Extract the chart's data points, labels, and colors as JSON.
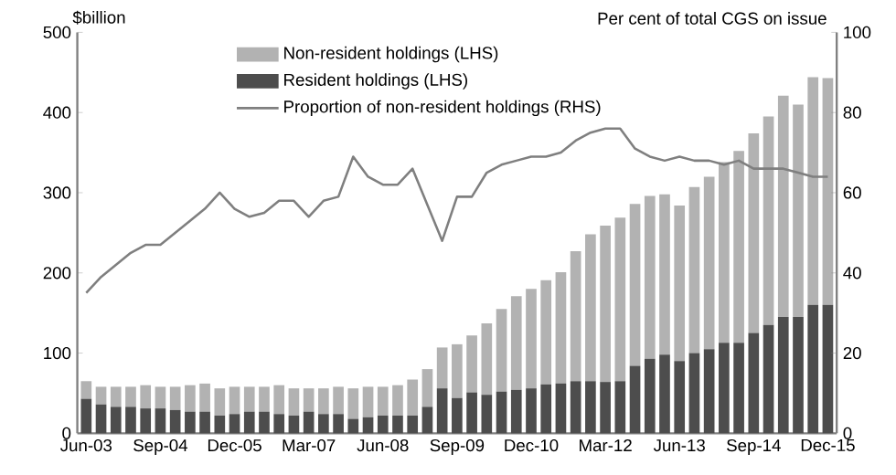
{
  "chart_data": {
    "type": "bar",
    "stacked": true,
    "ylabel": "$billion",
    "y2label": "Per cent of total CGS on issue",
    "categories": [
      "Jun-03",
      null,
      null,
      null,
      null,
      "Sep-04",
      null,
      null,
      null,
      null,
      "Dec-05",
      null,
      null,
      null,
      null,
      "Mar-07",
      null,
      null,
      null,
      null,
      "Jun-08",
      null,
      null,
      null,
      null,
      "Sep-09",
      null,
      null,
      null,
      null,
      "Dec-10",
      null,
      null,
      null,
      null,
      "Mar-12",
      null,
      null,
      null,
      null,
      "Jun-13",
      null,
      null,
      null,
      null,
      "Sep-14",
      null,
      null,
      null,
      null,
      "Dec-15"
    ],
    "ylim": [
      0,
      500
    ],
    "yticks": [
      0,
      100,
      200,
      300,
      400,
      500
    ],
    "y2lim": [
      0,
      100
    ],
    "y2ticks": [
      0,
      20,
      40,
      60,
      80,
      100
    ],
    "legend": "top left",
    "series": [
      {
        "name": "Resident holdings (LHS)",
        "color": "#4d4d4d",
        "values": [
          43,
          36,
          33,
          33,
          31,
          31,
          29,
          27,
          27,
          22,
          24,
          27,
          27,
          24,
          22,
          27,
          24,
          24,
          18,
          20,
          22,
          22,
          22,
          33,
          56,
          44,
          51,
          48,
          52,
          54,
          56,
          61,
          62,
          65,
          65,
          64,
          65,
          84,
          93,
          98,
          90,
          100,
          105,
          113,
          113,
          125,
          135,
          145,
          145,
          160,
          160
        ]
      },
      {
        "name": "Non-resident holdings (LHS)",
        "color": "#b2b2b2",
        "values": [
          22,
          22,
          25,
          25,
          29,
          27,
          29,
          33,
          35,
          34,
          34,
          31,
          31,
          36,
          34,
          29,
          32,
          34,
          38,
          38,
          36,
          38,
          45,
          47,
          51,
          67,
          71,
          89,
          103,
          117,
          124,
          130,
          139,
          162,
          183,
          195,
          204,
          202,
          203,
          200,
          194,
          207,
          215,
          225,
          239,
          249,
          260,
          276,
          265,
          284,
          283
        ]
      },
      {
        "name": "Proportion of non-resident holdings (RHS)",
        "type": "line",
        "axis": "y2",
        "color": "#7f7f7f",
        "values": [
          35,
          39,
          42,
          45,
          47,
          47,
          50,
          53,
          56,
          60,
          56,
          54,
          55,
          58,
          58,
          54,
          58,
          59,
          69,
          64,
          62,
          62,
          66,
          57,
          48,
          59,
          59,
          65,
          67,
          68,
          69,
          69,
          70,
          73,
          75,
          76,
          76,
          71,
          69,
          68,
          69,
          68,
          68,
          67,
          68,
          66,
          66,
          66,
          65,
          64,
          64
        ]
      }
    ]
  }
}
